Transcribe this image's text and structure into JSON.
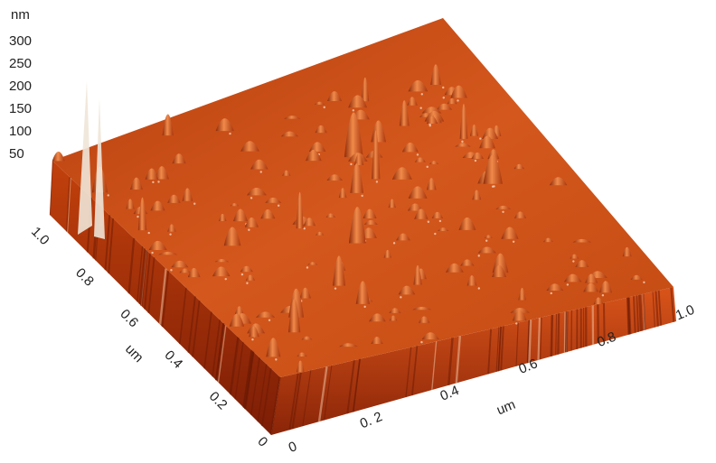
{
  "z_axis": {
    "unit": "nm",
    "ticks": [
      "300",
      "250",
      "200",
      "150",
      "100",
      "50"
    ]
  },
  "y_axis": {
    "label": "um",
    "ticks": [
      "1.0",
      "0.8",
      "0.6",
      "0.4",
      "0.2",
      "0"
    ]
  },
  "x_axis": {
    "label": "um",
    "ticks": [
      "0",
      "0. 2",
      "0.4",
      "0.6",
      "0.8",
      "1.0"
    ]
  }
}
